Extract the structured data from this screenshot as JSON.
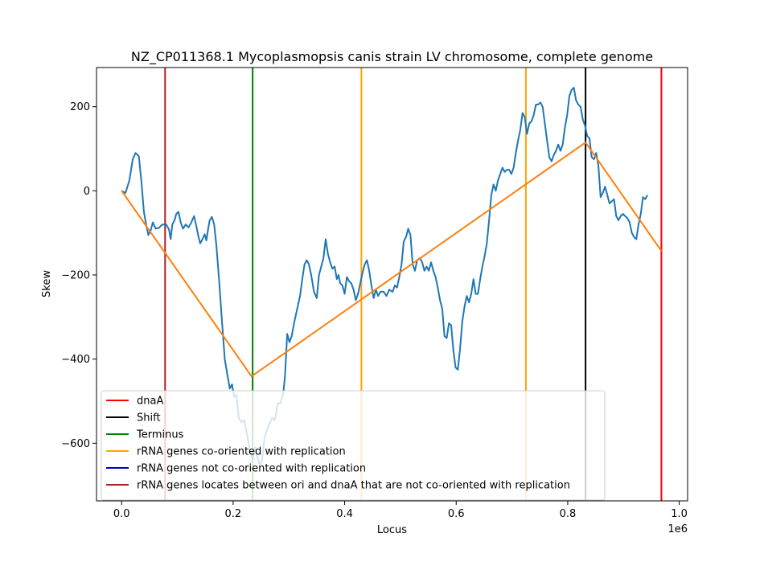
{
  "chart_data": {
    "type": "line",
    "title": "NZ_CP011368.1 Mycoplasmopsis canis strain LV chromosome, complete genome",
    "xlabel": "Locus",
    "ylabel": "Skew",
    "x_offset_label": "1e6",
    "xlim": [
      -45000,
      1015000
    ],
    "ylim": [
      -737,
      293
    ],
    "x_ticks": [
      {
        "value": 0,
        "label": "0.0"
      },
      {
        "value": 200000,
        "label": "0.2"
      },
      {
        "value": 400000,
        "label": "0.4"
      },
      {
        "value": 600000,
        "label": "0.6"
      },
      {
        "value": 800000,
        "label": "0.8"
      },
      {
        "value": 1000000,
        "label": "1.0"
      }
    ],
    "y_ticks": [
      {
        "value": 200,
        "label": "200"
      },
      {
        "value": 0,
        "label": "0"
      },
      {
        "value": -200,
        "label": "−200"
      },
      {
        "value": -400,
        "label": "−400"
      },
      {
        "value": -600,
        "label": "−600"
      }
    ],
    "series": [
      {
        "color": "#1f77b4",
        "points": [
          [
            0,
            0
          ],
          [
            7000,
            -5
          ],
          [
            14000,
            25
          ],
          [
            20000,
            75
          ],
          [
            25000,
            90
          ],
          [
            31000,
            82
          ],
          [
            36000,
            15
          ],
          [
            40000,
            -50
          ],
          [
            44000,
            -80
          ],
          [
            48000,
            -105
          ],
          [
            52000,
            -95
          ],
          [
            56000,
            -75
          ],
          [
            61000,
            -90
          ],
          [
            67000,
            -88
          ],
          [
            73000,
            -80
          ],
          [
            80000,
            -80
          ],
          [
            85000,
            -92
          ],
          [
            88000,
            -115
          ],
          [
            91000,
            -80
          ],
          [
            95000,
            -70
          ],
          [
            98000,
            -55
          ],
          [
            102000,
            -50
          ],
          [
            106000,
            -75
          ],
          [
            110000,
            -90
          ],
          [
            115000,
            -80
          ],
          [
            120000,
            -87
          ],
          [
            125000,
            -75
          ],
          [
            130000,
            -60
          ],
          [
            135000,
            -90
          ],
          [
            138000,
            -110
          ],
          [
            141000,
            -125
          ],
          [
            145000,
            -115
          ],
          [
            149000,
            -103
          ],
          [
            152000,
            -118
          ],
          [
            155000,
            -92
          ],
          [
            158000,
            -70
          ],
          [
            162000,
            -62
          ],
          [
            166000,
            -80
          ],
          [
            170000,
            -130
          ],
          [
            175000,
            -215
          ],
          [
            180000,
            -310
          ],
          [
            185000,
            -400
          ],
          [
            190000,
            -440
          ],
          [
            194000,
            -470
          ],
          [
            198000,
            -460
          ],
          [
            202000,
            -490
          ],
          [
            206000,
            -485
          ],
          [
            210000,
            -540
          ],
          [
            215000,
            -550
          ],
          [
            220000,
            -545
          ],
          [
            225000,
            -580
          ],
          [
            230000,
            -615
          ],
          [
            235000,
            -640
          ],
          [
            240000,
            -610
          ],
          [
            244000,
            -635
          ],
          [
            248000,
            -650
          ],
          [
            252000,
            -640
          ],
          [
            256000,
            -590
          ],
          [
            260000,
            -570
          ],
          [
            265000,
            -555
          ],
          [
            270000,
            -540
          ],
          [
            275000,
            -545
          ],
          [
            280000,
            -505
          ],
          [
            285000,
            -505
          ],
          [
            290000,
            -480
          ],
          [
            293000,
            -440
          ],
          [
            297000,
            -340
          ],
          [
            301000,
            -360
          ],
          [
            305000,
            -345
          ],
          [
            310000,
            -310
          ],
          [
            315000,
            -280
          ],
          [
            320000,
            -250
          ],
          [
            324000,
            -210
          ],
          [
            328000,
            -175
          ],
          [
            332000,
            -165
          ],
          [
            336000,
            -175
          ],
          [
            340000,
            -200
          ],
          [
            345000,
            -240
          ],
          [
            350000,
            -255
          ],
          [
            354000,
            -200
          ],
          [
            359000,
            -175
          ],
          [
            362000,
            -160
          ],
          [
            366000,
            -115
          ],
          [
            370000,
            -150
          ],
          [
            374000,
            -170
          ],
          [
            378000,
            -185
          ],
          [
            382000,
            -180
          ],
          [
            386000,
            -210
          ],
          [
            389000,
            -200
          ],
          [
            392000,
            -220
          ],
          [
            396000,
            -225
          ],
          [
            400000,
            -245
          ],
          [
            404000,
            -205
          ],
          [
            408000,
            -215
          ],
          [
            412000,
            -220
          ],
          [
            416000,
            -235
          ],
          [
            420000,
            -260
          ],
          [
            424000,
            -245
          ],
          [
            428000,
            -220
          ],
          [
            432000,
            -195
          ],
          [
            436000,
            -175
          ],
          [
            440000,
            -165
          ],
          [
            444000,
            -190
          ],
          [
            448000,
            -225
          ],
          [
            452000,
            -255
          ],
          [
            456000,
            -235
          ],
          [
            460000,
            -250
          ],
          [
            464000,
            -240
          ],
          [
            470000,
            -240
          ],
          [
            475000,
            -250
          ],
          [
            480000,
            -235
          ],
          [
            486000,
            -240
          ],
          [
            490000,
            -225
          ],
          [
            494000,
            -230
          ],
          [
            498000,
            -205
          ],
          [
            502000,
            -175
          ],
          [
            506000,
            -120
          ],
          [
            510000,
            -110
          ],
          [
            514000,
            -90
          ],
          [
            518000,
            -105
          ],
          [
            522000,
            -175
          ],
          [
            526000,
            -190
          ],
          [
            530000,
            -165
          ],
          [
            535000,
            -160
          ],
          [
            539000,
            -170
          ],
          [
            543000,
            -190
          ],
          [
            547000,
            -180
          ],
          [
            551000,
            -190
          ],
          [
            555000,
            -170
          ],
          [
            559000,
            -190
          ],
          [
            563000,
            -205
          ],
          [
            567000,
            -230
          ],
          [
            571000,
            -260
          ],
          [
            575000,
            -280
          ],
          [
            579000,
            -345
          ],
          [
            583000,
            -350
          ],
          [
            587000,
            -315
          ],
          [
            591000,
            -320
          ],
          [
            595000,
            -380
          ],
          [
            599000,
            -420
          ],
          [
            603000,
            -425
          ],
          [
            607000,
            -375
          ],
          [
            611000,
            -310
          ],
          [
            615000,
            -275
          ],
          [
            619000,
            -250
          ],
          [
            623000,
            -265
          ],
          [
            627000,
            -245
          ],
          [
            631000,
            -210
          ],
          [
            635000,
            -245
          ],
          [
            639000,
            -245
          ],
          [
            643000,
            -210
          ],
          [
            647000,
            -180
          ],
          [
            651000,
            -155
          ],
          [
            655000,
            -125
          ],
          [
            659000,
            -70
          ],
          [
            663000,
            -10
          ],
          [
            667000,
            15
          ],
          [
            671000,
            0
          ],
          [
            675000,
            25
          ],
          [
            679000,
            40
          ],
          [
            683000,
            55
          ],
          [
            687000,
            45
          ],
          [
            691000,
            50
          ],
          [
            695000,
            50
          ],
          [
            699000,
            40
          ],
          [
            703000,
            55
          ],
          [
            707000,
            90
          ],
          [
            711000,
            120
          ],
          [
            715000,
            145
          ],
          [
            719000,
            185
          ],
          [
            723000,
            175
          ],
          [
            727000,
            135
          ],
          [
            731000,
            160
          ],
          [
            735000,
            165
          ],
          [
            739000,
            180
          ],
          [
            743000,
            205
          ],
          [
            747000,
            205
          ],
          [
            751000,
            210
          ],
          [
            755000,
            200
          ],
          [
            759000,
            160
          ],
          [
            763000,
            120
          ],
          [
            767000,
            80
          ],
          [
            771000,
            70
          ],
          [
            775000,
            85
          ],
          [
            779000,
            95
          ],
          [
            783000,
            110
          ],
          [
            787000,
            95
          ],
          [
            791000,
            110
          ],
          [
            795000,
            150
          ],
          [
            799000,
            180
          ],
          [
            803000,
            225
          ],
          [
            807000,
            240
          ],
          [
            811000,
            245
          ],
          [
            815000,
            215
          ],
          [
            819000,
            205
          ],
          [
            823000,
            200
          ],
          [
            827000,
            170
          ],
          [
            831000,
            155
          ],
          [
            835000,
            130
          ],
          [
            839000,
            125
          ],
          [
            843000,
            80
          ],
          [
            847000,
            75
          ],
          [
            851000,
            90
          ],
          [
            855000,
            60
          ],
          [
            859000,
            -15
          ],
          [
            863000,
            -5
          ],
          [
            867000,
            10
          ],
          [
            871000,
            -10
          ],
          [
            875000,
            -30
          ],
          [
            879000,
            -25
          ],
          [
            883000,
            -20
          ],
          [
            887000,
            -60
          ],
          [
            891000,
            -70
          ],
          [
            895000,
            -60
          ],
          [
            899000,
            -55
          ],
          [
            903000,
            -60
          ],
          [
            907000,
            -65
          ],
          [
            911000,
            -75
          ],
          [
            915000,
            -100
          ],
          [
            919000,
            -110
          ],
          [
            923000,
            -115
          ],
          [
            927000,
            -80
          ],
          [
            931000,
            -55
          ],
          [
            935000,
            -15
          ],
          [
            939000,
            -20
          ],
          [
            943000,
            -10
          ]
        ]
      },
      {
        "color": "#ff7f0e",
        "points": [
          [
            0,
            0
          ],
          [
            233000,
            -441
          ],
          [
            832000,
            115
          ],
          [
            968000,
            -143
          ]
        ]
      }
    ],
    "vlines": [
      {
        "x": 968000,
        "color": "#ff0000"
      },
      {
        "x": 832000,
        "color": "#000000"
      },
      {
        "x": 235000,
        "color": "#008000"
      },
      {
        "x": 430000,
        "color": "#ffa500"
      },
      {
        "x": 725000,
        "color": "#ffa500"
      },
      {
        "x": 78000,
        "color": "#b22222"
      }
    ],
    "legend": {
      "placement": "lower-left",
      "entries": [
        {
          "label": "dnaA",
          "color": "#ff0000"
        },
        {
          "label": "Shift",
          "color": "#000000"
        },
        {
          "label": "Terminus",
          "color": "#008000"
        },
        {
          "label": "rRNA genes co-oriented with replication",
          "color": "#ffa500"
        },
        {
          "label": "rRNA genes not co-oriented with replication",
          "color": "#0000cd"
        },
        {
          "label": "rRNA genes locates between ori and dnaA that are not co-oriented with replication",
          "color": "#b22222"
        }
      ]
    }
  }
}
